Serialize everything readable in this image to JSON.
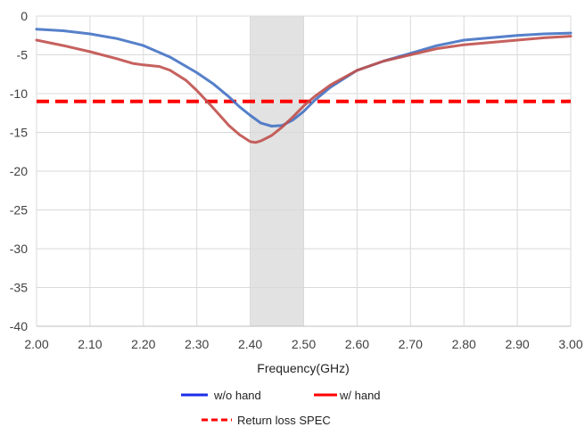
{
  "chart_data": {
    "type": "line",
    "title": "",
    "xlabel": "Frequency(GHz)",
    "ylabel": "",
    "xlim": [
      2.0,
      3.0
    ],
    "ylim": [
      -40,
      0
    ],
    "x_ticks": [
      "2.00",
      "2.10",
      "2.20",
      "2.30",
      "2.40",
      "2.50",
      "2.60",
      "2.70",
      "2.80",
      "2.90",
      "3.00"
    ],
    "y_ticks": [
      "0",
      "-5",
      "-10",
      "-15",
      "-20",
      "-25",
      "-30",
      "-35",
      "-40"
    ],
    "grid": true,
    "legend_position": "bottom",
    "highlight_band": {
      "x": [
        2.4,
        2.5
      ],
      "color": "#e2e2e2"
    },
    "series": [
      {
        "name": "w/o hand",
        "color": "#4472c4",
        "legend_color": "#1a2ee8",
        "style": "solid",
        "x": [
          2.0,
          2.05,
          2.1,
          2.15,
          2.2,
          2.25,
          2.3,
          2.33,
          2.36,
          2.38,
          2.4,
          2.42,
          2.44,
          2.46,
          2.48,
          2.5,
          2.52,
          2.55,
          2.6,
          2.65,
          2.7,
          2.75,
          2.8,
          2.85,
          2.9,
          2.95,
          3.0
        ],
        "y": [
          -1.7,
          -1.9,
          -2.3,
          -2.9,
          -3.8,
          -5.3,
          -7.3,
          -8.7,
          -10.4,
          -11.7,
          -12.8,
          -13.8,
          -14.2,
          -14.1,
          -13.4,
          -12.3,
          -10.9,
          -9.2,
          -7.0,
          -5.8,
          -4.8,
          -3.8,
          -3.1,
          -2.8,
          -2.5,
          -2.3,
          -2.2
        ]
      },
      {
        "name": "w/ hand",
        "color": "#c0504d",
        "legend_color": "#ff0000",
        "style": "solid",
        "x": [
          2.0,
          2.05,
          2.1,
          2.15,
          2.18,
          2.2,
          2.23,
          2.25,
          2.28,
          2.3,
          2.33,
          2.36,
          2.38,
          2.4,
          2.41,
          2.42,
          2.44,
          2.46,
          2.48,
          2.5,
          2.52,
          2.55,
          2.6,
          2.65,
          2.7,
          2.75,
          2.8,
          2.85,
          2.9,
          2.95,
          3.0
        ],
        "y": [
          -3.1,
          -3.8,
          -4.6,
          -5.5,
          -6.1,
          -6.3,
          -6.5,
          -7.0,
          -8.3,
          -9.6,
          -11.8,
          -14.1,
          -15.3,
          -16.2,
          -16.3,
          -16.1,
          -15.4,
          -14.3,
          -13.0,
          -11.6,
          -10.4,
          -8.9,
          -7.0,
          -5.8,
          -5.0,
          -4.2,
          -3.7,
          -3.4,
          -3.1,
          -2.8,
          -2.6
        ]
      },
      {
        "name": "Return loss SPEC",
        "color": "#ff0000",
        "legend_color": "#ff0000",
        "style": "dashed",
        "x": [
          2.0,
          3.0
        ],
        "y": [
          -11,
          -11
        ]
      }
    ]
  }
}
